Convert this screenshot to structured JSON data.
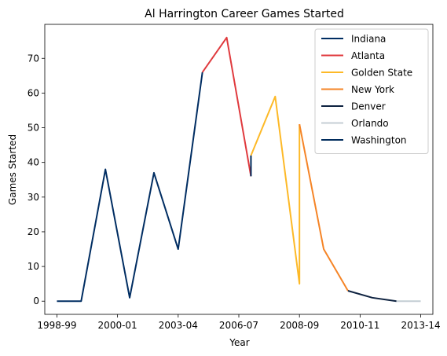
{
  "chart_data": {
    "type": "line",
    "title": "Al Harrington Career Games Started",
    "xlabel": "Year",
    "ylabel": "Games Started",
    "xlim": [
      -0.5,
      15.5
    ],
    "ylim": [
      -3.8,
      79.8
    ],
    "x_ticks": [
      {
        "pos": 0,
        "label": "1998-99"
      },
      {
        "pos": 2.5,
        "label": "2000-01"
      },
      {
        "pos": 5,
        "label": "2003-04"
      },
      {
        "pos": 7.5,
        "label": "2006-07"
      },
      {
        "pos": 10,
        "label": "2008-09"
      },
      {
        "pos": 12.5,
        "label": "2010-11"
      },
      {
        "pos": 15,
        "label": "2013-14"
      }
    ],
    "y_ticks": [
      0,
      10,
      20,
      30,
      40,
      50,
      60,
      70
    ],
    "legend_position": "top-right",
    "series": [
      {
        "name": "Indiana",
        "color": "#002D62",
        "points": [
          [
            0,
            0
          ],
          [
            1,
            0
          ],
          [
            2,
            38
          ],
          [
            3,
            1
          ],
          [
            4,
            37
          ],
          [
            5,
            15
          ],
          [
            6,
            66
          ]
        ]
      },
      {
        "name": "Atlanta",
        "color": "#E03A3E",
        "points": [
          [
            6,
            66
          ],
          [
            7,
            76
          ],
          [
            8,
            36
          ]
        ]
      },
      {
        "name": "Golden State",
        "color": "#FDB927",
        "points": [
          [
            8,
            42
          ],
          [
            9,
            59
          ],
          [
            10,
            5
          ],
          [
            10,
            51
          ]
        ]
      },
      {
        "name": "New York",
        "color": "#F58426",
        "points": [
          [
            10,
            51
          ],
          [
            11,
            15
          ],
          [
            12,
            3
          ]
        ]
      },
      {
        "name": "Denver",
        "color": "#0E2240",
        "points": [
          [
            12,
            3
          ],
          [
            13,
            1
          ],
          [
            14,
            0
          ]
        ]
      },
      {
        "name": "Orlando",
        "color": "#C4CED4",
        "points": [
          [
            14,
            0
          ],
          [
            15,
            0
          ]
        ]
      },
      {
        "name": "Washington",
        "color": "#002B5C",
        "points": [
          [
            8,
            42
          ],
          [
            8,
            36
          ]
        ]
      }
    ]
  }
}
